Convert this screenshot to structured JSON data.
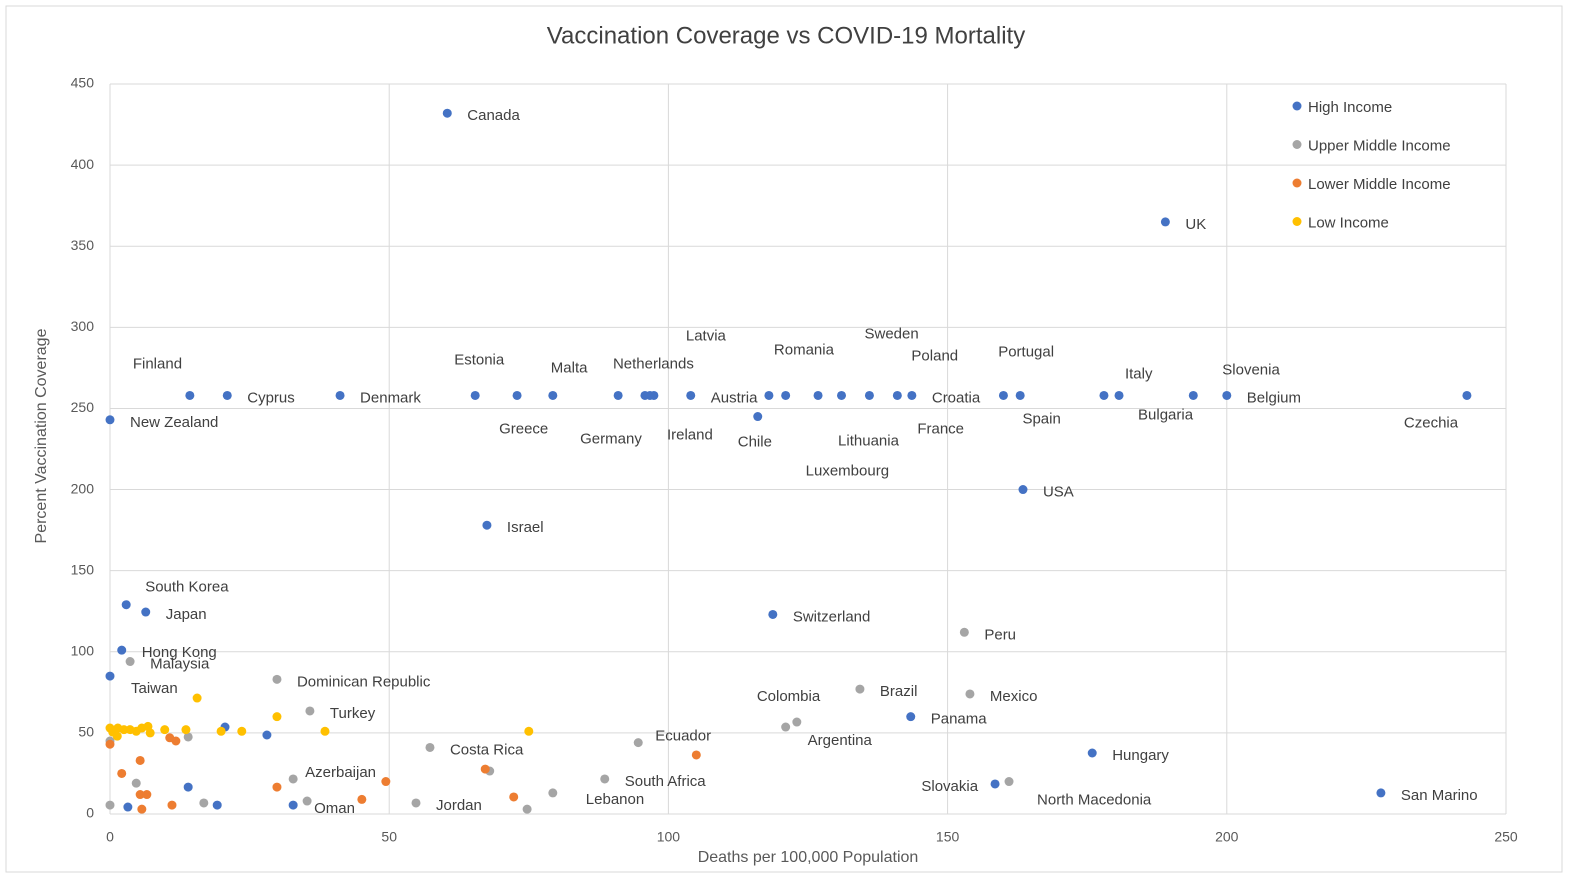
{
  "chart_data": {
    "type": "scatter",
    "title": "Vaccination Coverage vs COVID-19 Mortality",
    "x_label": "Deaths per 100,000 Population",
    "y_label": "Percent Vaccination Coverage",
    "xlim": [
      0,
      250
    ],
    "xticks": [
      0,
      50,
      100,
      150,
      200,
      250
    ],
    "ylim": [
      0,
      450
    ],
    "yticks": [
      0,
      50,
      100,
      150,
      200,
      250,
      300,
      350,
      400,
      450
    ],
    "grid": true,
    "legend": "upper right",
    "series": [
      {
        "name": "High Income",
        "color": "#4472c4",
        "x": [
          60.4,
          189,
          14.3,
          21,
          41.2,
          0,
          65.4,
          72.9,
          79.3,
          91,
          95.8,
          96.7,
          97.4,
          104,
          116,
          118,
          121,
          126.8,
          131,
          136,
          141,
          143.6,
          160,
          163,
          178,
          180.7,
          194,
          200,
          243,
          163.5,
          67.5,
          2.9,
          6.4,
          2.1,
          0,
          118.7,
          143.4,
          175.9,
          158.5,
          227.6,
          20.6,
          28.1,
          14,
          19.2,
          3.2,
          32.8
        ],
        "values": [
          432,
          365,
          258,
          258,
          258,
          243,
          258,
          258,
          258,
          258,
          258,
          258,
          258,
          258,
          245,
          258,
          258,
          258,
          258,
          258,
          258,
          258,
          258,
          258,
          258,
          258,
          258,
          258,
          258,
          200,
          178,
          129,
          124.5,
          101,
          85,
          123,
          60,
          37.6,
          18.5,
          13,
          53.6,
          48.7,
          16.6,
          5.5,
          4.3,
          5.5
        ],
        "labels": [
          "Canada",
          "UK",
          "Finland",
          "Cyprus",
          "Denmark",
          "New Zealand",
          "Estonia",
          "Greece",
          "Malta",
          "Germany",
          "Netherlands",
          "Ireland",
          "Latvia",
          "Austria",
          "Chile",
          "Romania",
          "Luxembourg",
          "Lithuania",
          "Sweden",
          "Poland",
          "France",
          "Croatia",
          "Spain",
          "Portugal",
          "Italy",
          "Bulgaria",
          "Slovenia",
          "Belgium",
          "Czechia",
          "USA",
          "Israel",
          "South Korea",
          "Japan",
          "Hong Kong",
          "Taiwan",
          "Switzerland",
          "Panama",
          "Hungary",
          "Slovakia",
          "San Marino",
          null,
          null,
          null,
          null,
          null,
          null
        ]
      },
      {
        "name": "Upper Middle Income",
        "color": "#a5a5a5",
        "x": [
          153,
          3.6,
          29.9,
          35.8,
          134.3,
          154,
          123,
          121,
          57.3,
          94.6,
          32.8,
          88.6,
          79.3,
          161,
          35.3,
          54.8,
          0,
          4.7,
          14,
          16.8,
          68,
          74.7,
          0
        ],
        "values": [
          112,
          94,
          83,
          63.5,
          77,
          74,
          56.7,
          53.6,
          41,
          44,
          21.6,
          21.6,
          13,
          20,
          8,
          6.8,
          5.5,
          19,
          47.5,
          6.8,
          26.5,
          3,
          45
        ],
        "labels": [
          "Peru",
          "Malaysia",
          "Dominican Republic",
          "Turkey",
          "Brazil",
          "Mexico",
          "Colombia",
          "Argentina",
          "Costa Rica",
          "Ecuador",
          "Azerbaijan",
          "South Africa",
          "Lebanon",
          "North Macedonia",
          "Oman",
          "Jordan",
          null,
          null,
          null,
          null,
          null,
          null,
          null
        ]
      },
      {
        "name": "Lower Middle Income",
        "color": "#ed7d31",
        "x": [
          0,
          2.1,
          5.4,
          5.4,
          6.6,
          5.7,
          10.7,
          11.8,
          11.1,
          29.9,
          45.1,
          49.4,
          67.2,
          72.3,
          105
        ],
        "values": [
          43,
          25,
          33,
          12,
          12,
          3,
          47,
          45,
          5.5,
          16.6,
          9,
          20,
          27.7,
          10.5,
          36.4
        ]
      },
      {
        "name": "Low Income",
        "color": "#ffc000",
        "x": [
          0,
          0.5,
          1.4,
          2.5,
          3.6,
          4.7,
          5.7,
          6.8,
          7.2,
          1.3,
          9.8,
          13.6,
          19.9,
          23.6,
          15.6,
          29.9,
          38.5,
          75
        ],
        "values": [
          53,
          50.5,
          53,
          52,
          52,
          51,
          53,
          54,
          50,
          48,
          52,
          52,
          51,
          51,
          71.5,
          60,
          51,
          51
        ]
      }
    ]
  }
}
